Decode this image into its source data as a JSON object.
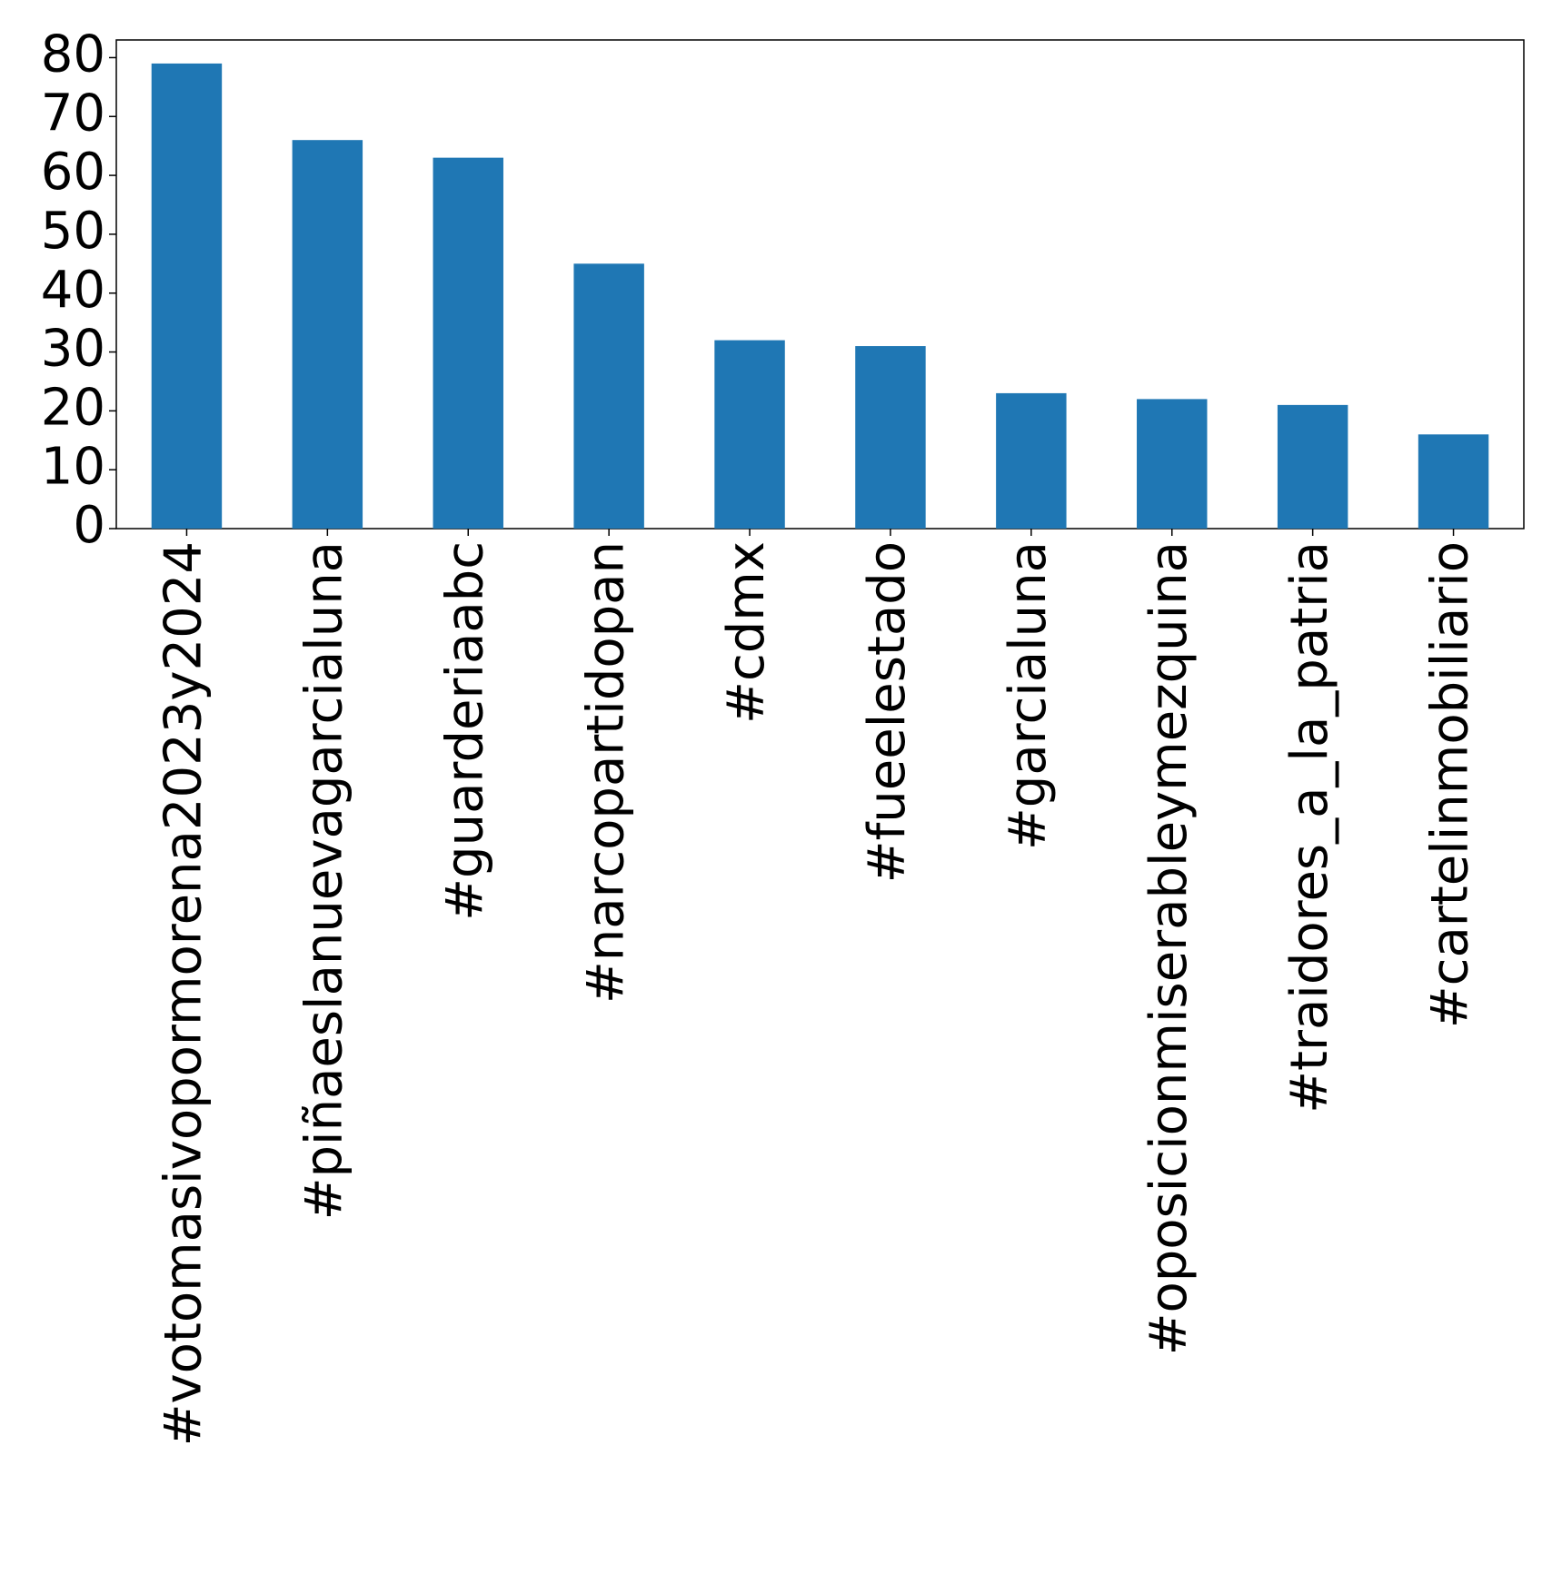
{
  "chart_data": {
    "type": "bar",
    "categories": [
      "#votomasivopormorena2023y2024",
      "#piñaeslanuevagarcialuna",
      "#guarderiaabc",
      "#narcopartidopan",
      "#cdmx",
      "#fueelestado",
      "#garcialuna",
      "#oposicionmiserableymezquina",
      "#traidores_a_la_patria",
      "#cartelinmobiliario"
    ],
    "values": [
      79,
      66,
      63,
      45,
      32,
      31,
      23,
      22,
      21,
      16
    ],
    "color": "#1f77b4",
    "ylim": [
      0,
      83
    ],
    "yticks": [
      0,
      10,
      20,
      30,
      40,
      50,
      60,
      70,
      80
    ],
    "grid": false
  }
}
